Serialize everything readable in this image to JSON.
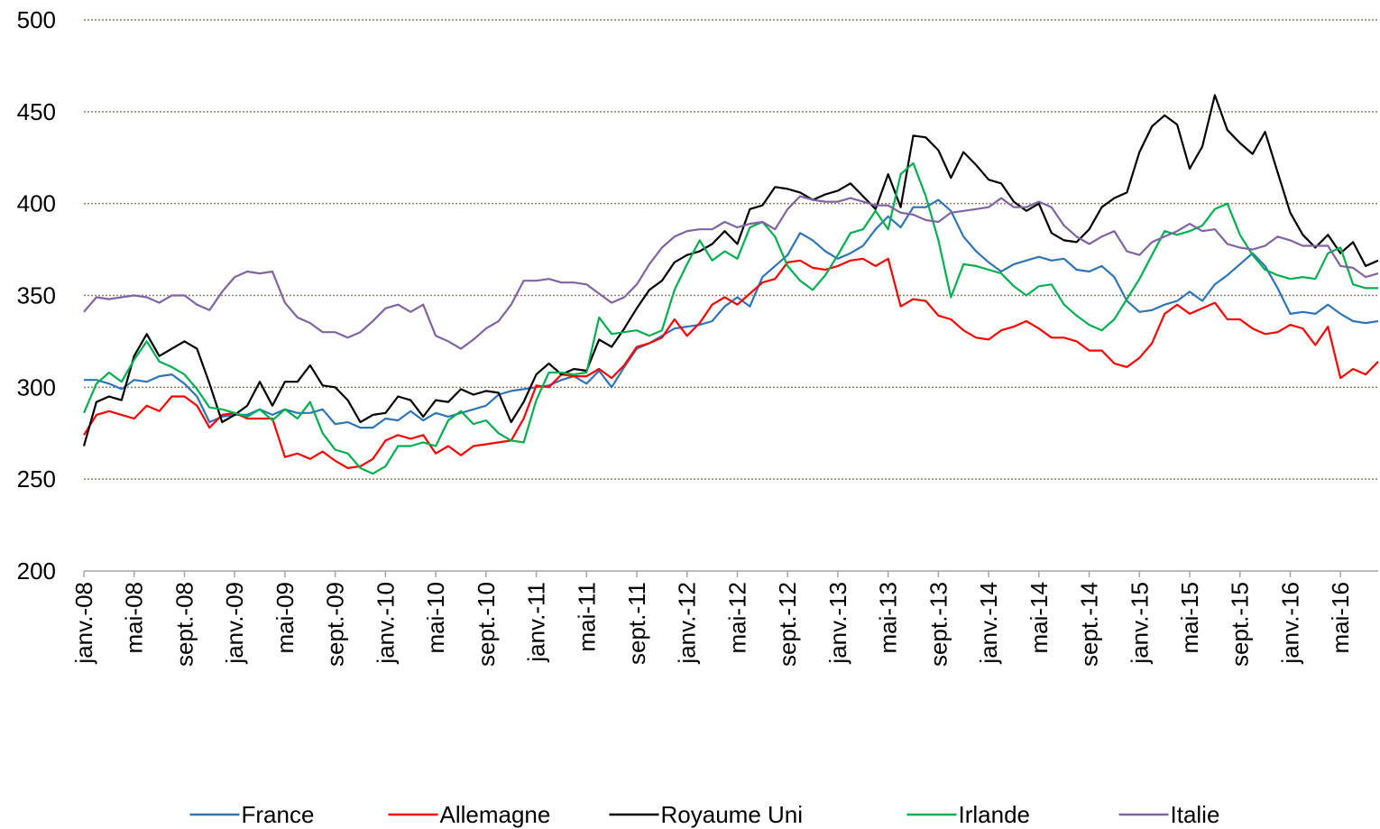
{
  "chart_data": {
    "type": "line",
    "categories": [
      "janv.-08",
      null,
      null,
      null,
      "mai-08",
      null,
      null,
      null,
      "sept.-08",
      null,
      null,
      null,
      "janv.-09",
      null,
      null,
      null,
      "mai-09",
      null,
      null,
      null,
      "sept.-09",
      null,
      null,
      null,
      "janv.-10",
      null,
      null,
      null,
      "mai-10",
      null,
      null,
      null,
      "sept.-10",
      null,
      null,
      null,
      "janv.-11",
      null,
      null,
      null,
      "mai-11",
      null,
      null,
      null,
      "sept.-11",
      null,
      null,
      null,
      "janv.-12",
      null,
      null,
      null,
      "mai-12",
      null,
      null,
      null,
      "sept.-12",
      null,
      null,
      null,
      "janv.-13",
      null,
      null,
      null,
      "mai-13",
      null,
      null,
      null,
      "sept.-13",
      null,
      null,
      null,
      "janv.-14",
      null,
      null,
      null,
      "mai-14",
      null,
      null,
      null,
      "sept.-14",
      null,
      null,
      null,
      "janv.-15",
      null,
      null,
      null,
      "mai-15",
      null,
      null,
      null,
      "sept.-15",
      null,
      null,
      null,
      "janv.-16",
      null,
      null,
      null,
      "mai-16",
      null,
      null,
      null
    ],
    "series": [
      {
        "name": "France",
        "color": "#2e75b6",
        "values": [
          304,
          304,
          302,
          299,
          304,
          303,
          306,
          307,
          302,
          295,
          281,
          284,
          285,
          285,
          288,
          285,
          288,
          286,
          286,
          288,
          280,
          281,
          278,
          278,
          283,
          282,
          287,
          282,
          286,
          284,
          286,
          288,
          290,
          296,
          298,
          299,
          300,
          301,
          304,
          306,
          302,
          309,
          300,
          311,
          321,
          324,
          328,
          332,
          333,
          334,
          336,
          344,
          349,
          344,
          360,
          366,
          372,
          384,
          380,
          374,
          370,
          373,
          377,
          386,
          393,
          387,
          398,
          398,
          402,
          396,
          382,
          374,
          368,
          363,
          367,
          369,
          371,
          369,
          370,
          364,
          363,
          366,
          360,
          347,
          341,
          342,
          345,
          347,
          352,
          347,
          356,
          361,
          367,
          373,
          366,
          354,
          340,
          341,
          340,
          345,
          340,
          336,
          335,
          336
        ]
      },
      {
        "name": "Allemagne",
        "color": "#ff0000",
        "values": [
          274,
          285,
          287,
          285,
          283,
          290,
          287,
          295,
          295,
          290,
          278,
          285,
          286,
          283,
          283,
          283,
          262,
          264,
          261,
          265,
          260,
          256,
          257,
          261,
          271,
          274,
          272,
          274,
          264,
          268,
          263,
          268,
          269,
          270,
          271,
          283,
          301,
          300,
          307,
          306,
          306,
          310,
          305,
          312,
          322,
          324,
          327,
          337,
          328,
          335,
          345,
          349,
          345,
          351,
          357,
          359,
          368,
          369,
          365,
          364,
          366,
          369,
          370,
          366,
          370,
          344,
          348,
          347,
          339,
          337,
          331,
          327,
          326,
          331,
          333,
          336,
          332,
          327,
          327,
          325,
          320,
          320,
          313,
          311,
          316,
          324,
          340,
          345,
          340,
          343,
          346,
          337,
          337,
          332,
          329,
          330,
          334,
          332,
          323,
          333,
          305,
          310,
          307,
          314
        ]
      },
      {
        "name": "Royaume Uni",
        "color": "#000000",
        "values": [
          268,
          292,
          295,
          293,
          317,
          329,
          317,
          321,
          325,
          321,
          302,
          281,
          285,
          290,
          303,
          290,
          303,
          303,
          312,
          301,
          300,
          293,
          281,
          285,
          286,
          295,
          293,
          284,
          293,
          292,
          299,
          296,
          298,
          297,
          281,
          292,
          307,
          313,
          307,
          310,
          309,
          326,
          322,
          332,
          343,
          353,
          358,
          368,
          372,
          374,
          378,
          385,
          378,
          397,
          399,
          409,
          408,
          406,
          402,
          405,
          407,
          411,
          404,
          397,
          416,
          398,
          437,
          436,
          429,
          414,
          428,
          421,
          413,
          411,
          401,
          396,
          400,
          384,
          380,
          379,
          386,
          398,
          403,
          406,
          428,
          442,
          448,
          443,
          419,
          431,
          459,
          440,
          433,
          427,
          439,
          417,
          395,
          383,
          376,
          383,
          373,
          379,
          366,
          369
        ]
      },
      {
        "name": "Irlande",
        "color": "#00b050",
        "values": [
          286,
          302,
          308,
          303,
          315,
          325,
          314,
          311,
          307,
          299,
          289,
          288,
          286,
          284,
          288,
          282,
          288,
          283,
          292,
          275,
          266,
          264,
          256,
          253,
          257,
          268,
          268,
          270,
          268,
          282,
          287,
          280,
          282,
          275,
          271,
          270,
          293,
          308,
          308,
          307,
          308,
          338,
          329,
          330,
          331,
          328,
          331,
          353,
          367,
          380,
          369,
          374,
          370,
          387,
          390,
          382,
          366,
          358,
          353,
          361,
          372,
          384,
          386,
          396,
          386,
          416,
          422,
          404,
          380,
          349,
          367,
          366,
          364,
          362,
          355,
          350,
          355,
          356,
          345,
          339,
          334,
          331,
          337,
          348,
          359,
          372,
          385,
          383,
          385,
          388,
          397,
          400,
          383,
          372,
          364,
          361,
          359,
          360,
          359,
          373,
          376,
          356,
          354,
          354
        ]
      },
      {
        "name": "Italie",
        "color": "#8064a2",
        "values": [
          341,
          349,
          348,
          349,
          350,
          349,
          346,
          350,
          350,
          345,
          342,
          352,
          360,
          363,
          362,
          363,
          346,
          338,
          335,
          330,
          330,
          327,
          330,
          336,
          343,
          345,
          341,
          345,
          328,
          325,
          321,
          326,
          332,
          336,
          345,
          358,
          358,
          359,
          357,
          357,
          356,
          351,
          346,
          349,
          356,
          367,
          376,
          382,
          385,
          386,
          386,
          390,
          387,
          389,
          390,
          386,
          397,
          404,
          402,
          401,
          401,
          403,
          401,
          399,
          399,
          395,
          394,
          391,
          390,
          395,
          396,
          397,
          398,
          403,
          398,
          398,
          401,
          398,
          388,
          382,
          378,
          382,
          385,
          374,
          372,
          379,
          382,
          385,
          389,
          385,
          386,
          378,
          376,
          375,
          377,
          382,
          380,
          377,
          377,
          377,
          366,
          365,
          360,
          362
        ]
      }
    ],
    "ylim": [
      200,
      500
    ],
    "yticks": [
      200,
      250,
      300,
      350,
      400,
      450,
      500
    ],
    "grid": true,
    "legend": "bottom"
  }
}
